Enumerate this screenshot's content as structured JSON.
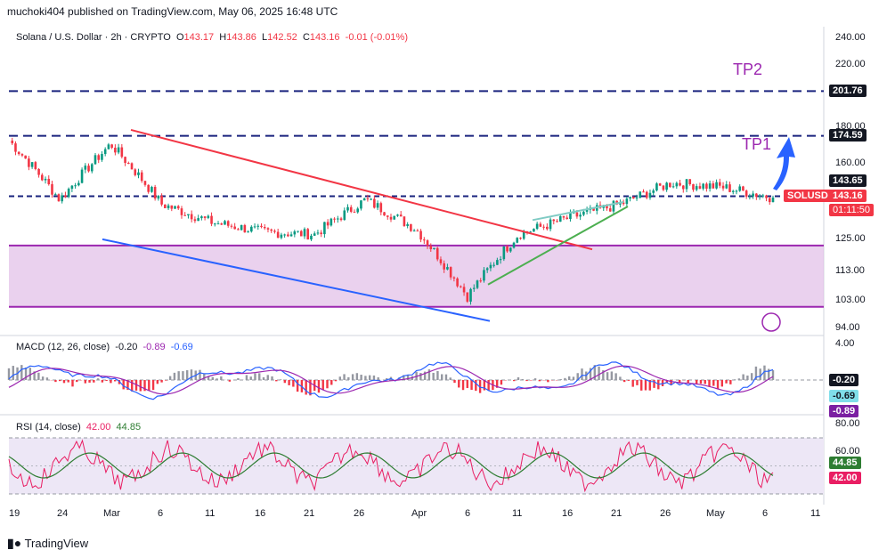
{
  "publisher_line": "muchoki404 published on TradingView.com, May 06, 2025 16:48 UTC",
  "footer_brand": "TradingView",
  "colors": {
    "candle_up": "#089981",
    "candle_down": "#f23645",
    "support_zone": "#e1bee7",
    "zone_border": "#9c27b0",
    "tp_line": "#1a237e",
    "red_trend": "#f23645",
    "blue_trend": "#2962ff",
    "green_wedge": "#4caf50",
    "teal_wedge": "#80cbc4",
    "arrow": "#2962ff",
    "macd_line": "#2962ff",
    "signal_line": "#9c27b0",
    "rsi_line": "#e91e63",
    "rsi_ma": "#2e7d32",
    "rsi_band": "#ede7f6"
  },
  "main": {
    "symbol": "Solana / U.S. Dollar · 2h · CRYPTO",
    "o_label": "O",
    "o": "143.17",
    "h_label": "H",
    "h": "143.86",
    "l_label": "L",
    "l": "142.52",
    "c_label": "C",
    "c": "143.16",
    "change": "-0.01 (-0.01%)",
    "tp2_label": "TP2",
    "tp1_label": "TP1",
    "ticker_badge": "SOLUSD",
    "tags": {
      "tp2": "201.76",
      "tp1": "174.59",
      "entry": "143.65",
      "price": "143.16",
      "countdown": "01:11:50"
    },
    "y_ticks": [
      "240.00",
      "220.00",
      "180.00",
      "160.00",
      "125.00",
      "113.00",
      "103.00",
      "94.00"
    ]
  },
  "macd": {
    "label": "MACD (12, 26, close)",
    "v1": "-0.20",
    "v2": "-0.89",
    "v3": "-0.69",
    "y_ticks": [
      "4.00"
    ],
    "tags": {
      "a": "-0.20",
      "b": "-0.69",
      "c": "-0.89"
    }
  },
  "rsi": {
    "label": "RSI (14, close)",
    "v1": "42.00",
    "v2": "44.85",
    "y_ticks": [
      "80.00",
      "60.00"
    ],
    "tags": {
      "a": "44.85",
      "b": "42.00"
    }
  },
  "x_ticks": [
    "19",
    "24",
    "Mar",
    "6",
    "11",
    "16",
    "21",
    "26",
    "Apr",
    "6",
    "11",
    "16",
    "21",
    "26",
    "May",
    "6",
    "11"
  ],
  "chart_data": {
    "type": "line",
    "title": "Solana / U.S. Dollar · 2h · CRYPTO",
    "x": [
      "19",
      "24",
      "Mar",
      "6",
      "11",
      "16",
      "21",
      "26",
      "Apr",
      "6",
      "11",
      "16",
      "21",
      "26",
      "May",
      "6"
    ],
    "series": [
      {
        "values": [
          172,
          142,
          170,
          140,
          132,
          128,
          127,
          142,
          129,
          104,
          127,
          134,
          140,
          150,
          148,
          143
        ]
      }
    ],
    "levels": {
      "TP2": 201.76,
      "TP1": 174.59,
      "entry": 143.65,
      "zone_top": 122.5,
      "zone_bottom": 100.5
    },
    "ylim": [
      90,
      245
    ],
    "y_scale": "log",
    "grid": false,
    "macd_last": [
      -0.2,
      -0.89,
      -0.69
    ],
    "rsi_last": [
      42.0,
      44.85
    ]
  }
}
